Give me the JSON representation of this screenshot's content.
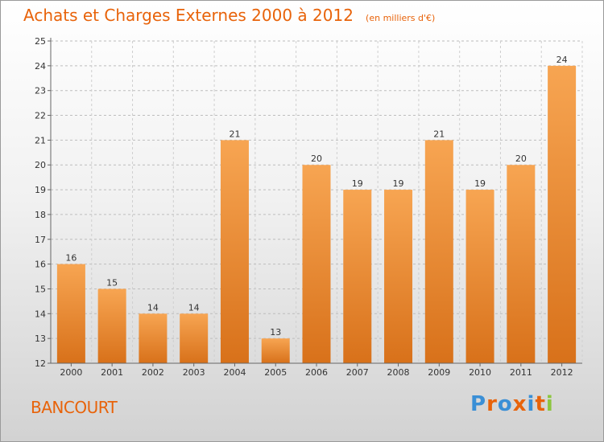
{
  "header": {
    "title": "Achats et Charges Externes 2000 à 2012",
    "subtitle": "(en milliers d'€)"
  },
  "footer": {
    "place": "BANCOURT",
    "logo_text": "Proxiti"
  },
  "colors": {
    "title": "#e8630a",
    "bar_top": "#f7a552",
    "bar_bottom": "#d8711a",
    "logo_letters": [
      "#3a8fd6",
      "#e8630a",
      "#3a8fd6",
      "#e8630a",
      "#3a8fd6",
      "#e8630a",
      "#8cc63f"
    ]
  },
  "chart_data": {
    "type": "bar",
    "categories": [
      "2000",
      "2001",
      "2002",
      "2003",
      "2004",
      "2005",
      "2006",
      "2007",
      "2008",
      "2009",
      "2010",
      "2011",
      "2012"
    ],
    "series": [
      {
        "values": [
          16,
          15,
          14,
          14,
          21,
          13,
          20,
          19,
          19,
          21,
          19,
          20,
          24
        ]
      }
    ],
    "ylim": [
      12,
      25
    ],
    "yticks": [
      12,
      13,
      14,
      15,
      16,
      17,
      18,
      19,
      20,
      21,
      22,
      23,
      24,
      25
    ],
    "grid": true,
    "data_labels": true,
    "legend": "none"
  }
}
